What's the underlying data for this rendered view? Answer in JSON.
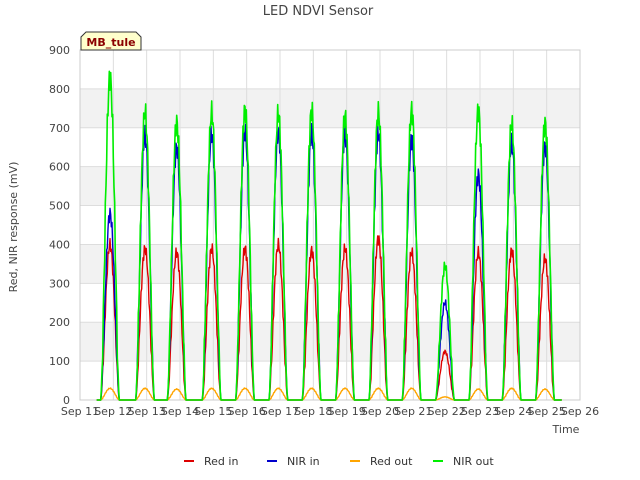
{
  "chart_data": {
    "type": "line",
    "title": "LED NDVI Sensor",
    "badge": "MB_tule",
    "xlabel": "Time",
    "ylabel": "Red, NIR response (mV)",
    "ylim": [
      0,
      900
    ],
    "yticks": [
      0,
      100,
      200,
      300,
      400,
      500,
      600,
      700,
      800,
      900
    ],
    "xlim": [
      11,
      26
    ],
    "xticks": [
      "Sep 11",
      "Sep 12",
      "Sep 13",
      "Sep 14",
      "Sep 15",
      "Sep 16",
      "Sep 17",
      "Sep 18",
      "Sep 19",
      "Sep 20",
      "Sep 21",
      "Sep 22",
      "Sep 23",
      "Sep 24",
      "Sep 25",
      "Sep 26"
    ],
    "grid": true,
    "legend_position": "bottom",
    "series": [
      {
        "name": "Red in",
        "color": "#dd0000",
        "peaks": [
          [
            11.9,
            400
          ],
          [
            12.95,
            390
          ],
          [
            13.9,
            380
          ],
          [
            14.95,
            390
          ],
          [
            15.95,
            390
          ],
          [
            16.95,
            400
          ],
          [
            17.95,
            385
          ],
          [
            18.95,
            390
          ],
          [
            19.95,
            415
          ],
          [
            20.95,
            380
          ],
          [
            21.95,
            125
          ],
          [
            22.95,
            380
          ],
          [
            23.95,
            385
          ],
          [
            24.95,
            365
          ]
        ]
      },
      {
        "name": "NIR in",
        "color": "#0000cc",
        "peaks": [
          [
            11.9,
            480
          ],
          [
            12.95,
            680
          ],
          [
            13.9,
            650
          ],
          [
            14.95,
            685
          ],
          [
            15.95,
            690
          ],
          [
            16.95,
            690
          ],
          [
            17.95,
            685
          ],
          [
            18.95,
            685
          ],
          [
            19.95,
            685
          ],
          [
            20.95,
            670
          ],
          [
            21.95,
            250
          ],
          [
            22.95,
            580
          ],
          [
            23.95,
            660
          ],
          [
            24.95,
            655
          ]
        ]
      },
      {
        "name": "Red out",
        "color": "#ffa500",
        "peaks": [
          [
            11.9,
            30
          ],
          [
            12.95,
            30
          ],
          [
            13.9,
            28
          ],
          [
            14.95,
            30
          ],
          [
            15.95,
            30
          ],
          [
            16.95,
            30
          ],
          [
            17.95,
            30
          ],
          [
            18.95,
            30
          ],
          [
            19.95,
            30
          ],
          [
            20.95,
            30
          ],
          [
            21.95,
            8
          ],
          [
            22.95,
            28
          ],
          [
            23.95,
            30
          ],
          [
            24.95,
            28
          ]
        ]
      },
      {
        "name": "NIR out",
        "color": "#00ee00",
        "peaks": [
          [
            11.9,
            830
          ],
          [
            12.95,
            740
          ],
          [
            13.9,
            715
          ],
          [
            14.95,
            740
          ],
          [
            15.95,
            748
          ],
          [
            16.95,
            738
          ],
          [
            17.95,
            745
          ],
          [
            18.95,
            730
          ],
          [
            19.95,
            740
          ],
          [
            20.95,
            745
          ],
          [
            21.95,
            345
          ],
          [
            22.95,
            745
          ],
          [
            23.95,
            710
          ],
          [
            24.95,
            712
          ]
        ]
      }
    ]
  }
}
